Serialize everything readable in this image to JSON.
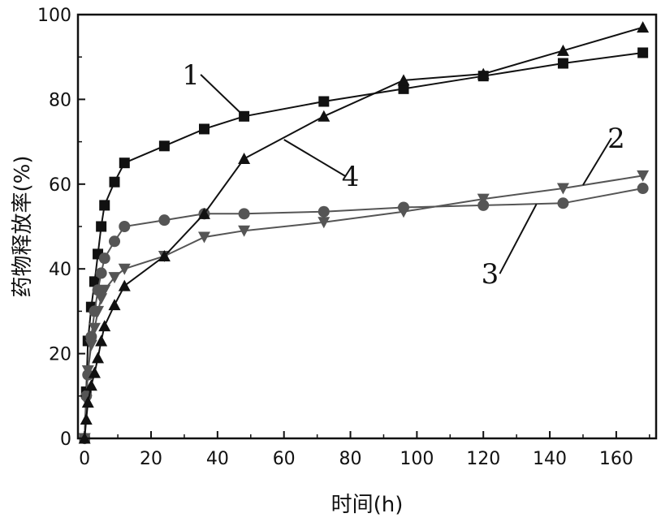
{
  "chart_data": {
    "type": "line",
    "xlabel": "时间(h)",
    "ylabel": "药物释放率(%)",
    "xlim": [
      -2,
      172
    ],
    "ylim": [
      0,
      100
    ],
    "xticks": [
      0,
      20,
      40,
      60,
      80,
      100,
      120,
      140,
      160
    ],
    "yticks": [
      0,
      20,
      40,
      60,
      80,
      100
    ],
    "grid": false,
    "legend": "none",
    "series": [
      {
        "name": "1",
        "marker": "square",
        "color": "#111111",
        "x": [
          0,
          0.5,
          1,
          2,
          3,
          4,
          5,
          6,
          9,
          12,
          24,
          36,
          48,
          72,
          96,
          120,
          144,
          168
        ],
        "y": [
          0,
          11,
          23,
          31,
          37,
          43.5,
          50,
          55,
          60.5,
          65,
          69,
          73,
          76,
          79.5,
          82.5,
          85.5,
          88.5,
          91
        ]
      },
      {
        "name": "2",
        "marker": "triangle-down",
        "color": "#555555",
        "x": [
          0,
          0.5,
          1,
          2,
          3,
          4,
          5,
          6,
          9,
          12,
          24,
          36,
          48,
          72,
          96,
          120,
          144,
          168
        ],
        "y": [
          0,
          9,
          16,
          22,
          26,
          30,
          33,
          35,
          38,
          40,
          43,
          47.5,
          49,
          51,
          53.5,
          56.5,
          59,
          62
        ]
      },
      {
        "name": "3",
        "marker": "circle",
        "color": "#555555",
        "x": [
          0,
          0.5,
          1,
          2,
          3,
          4,
          5,
          6,
          9,
          12,
          24,
          36,
          48,
          72,
          96,
          120,
          144,
          168
        ],
        "y": [
          0,
          10,
          15,
          24,
          30,
          35,
          39,
          42.5,
          46.5,
          50,
          51.5,
          53,
          53,
          53.5,
          54.5,
          55,
          55.5,
          59
        ]
      },
      {
        "name": "4",
        "marker": "triangle-up",
        "color": "#111111",
        "x": [
          0,
          0.5,
          1,
          2,
          3,
          4,
          5,
          6,
          9,
          12,
          24,
          36,
          48,
          72,
          96,
          120,
          144,
          168
        ],
        "y": [
          0,
          4.5,
          8.5,
          12.5,
          15.5,
          19,
          23,
          26.5,
          31.5,
          36,
          43,
          53,
          66,
          76,
          84.5,
          86,
          91.5,
          97
        ]
      }
    ],
    "annotations": [
      {
        "text": "1",
        "series": "1",
        "at_x": 48,
        "at_y": 76,
        "label_x": 32,
        "label_y": 87
      },
      {
        "text": "4",
        "series": "4",
        "at_x": 60,
        "at_y": 70.5,
        "label_x": 80,
        "label_y": 63
      },
      {
        "text": "2",
        "series": "2",
        "at_x": 150,
        "at_y": 59.8,
        "label_x": 160,
        "label_y": 72
      },
      {
        "text": "3",
        "series": "3",
        "at_x": 136,
        "at_y": 55.3,
        "label_x": 122,
        "label_y": 40
      }
    ]
  }
}
